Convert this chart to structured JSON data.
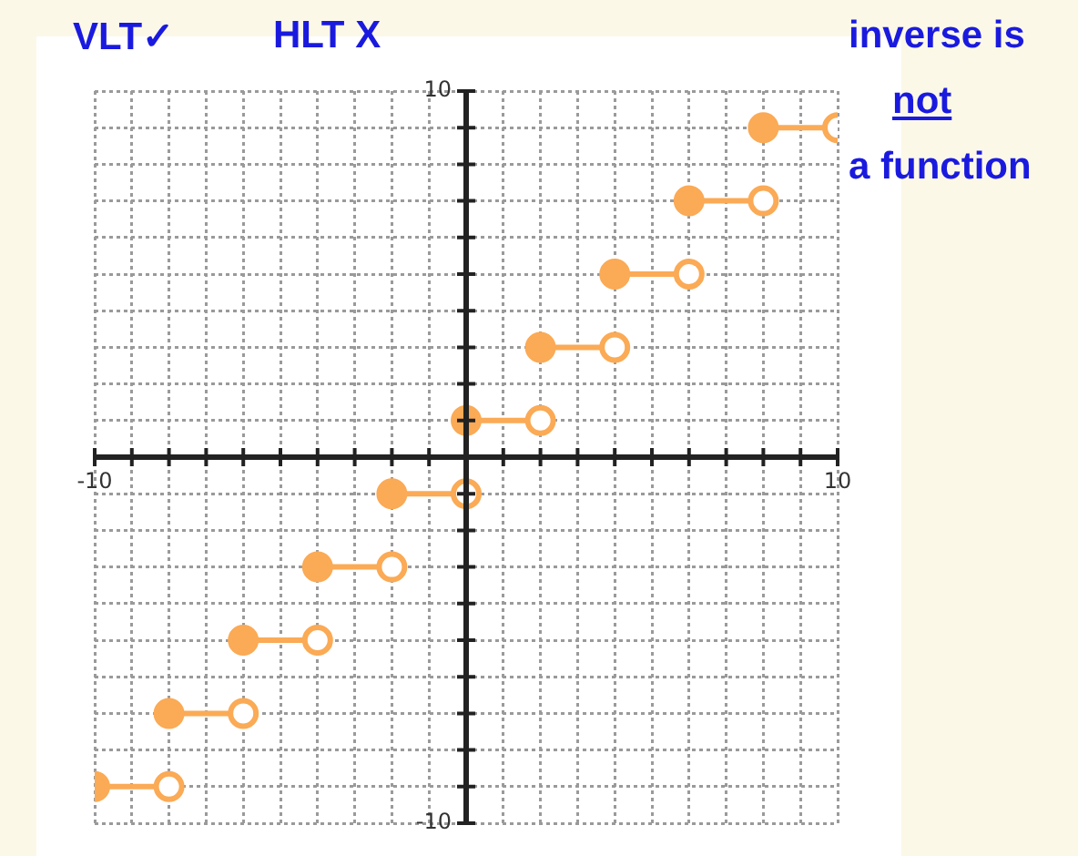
{
  "chart_data": {
    "type": "line",
    "xlim": [
      -10,
      10
    ],
    "ylim": [
      -10,
      10
    ],
    "xticks": [
      {
        "value": -10,
        "label": "-10"
      },
      {
        "value": -9,
        "label": null
      },
      {
        "value": -8,
        "label": null
      },
      {
        "value": -7,
        "label": null
      },
      {
        "value": -6,
        "label": null
      },
      {
        "value": -5,
        "label": null
      },
      {
        "value": -4,
        "label": null
      },
      {
        "value": -3,
        "label": null
      },
      {
        "value": -2,
        "label": null
      },
      {
        "value": -1,
        "label": null
      },
      {
        "value": 0,
        "label": null
      },
      {
        "value": 1,
        "label": null
      },
      {
        "value": 2,
        "label": null
      },
      {
        "value": 3,
        "label": null
      },
      {
        "value": 4,
        "label": null
      },
      {
        "value": 5,
        "label": null
      },
      {
        "value": 6,
        "label": null
      },
      {
        "value": 7,
        "label": null
      },
      {
        "value": 8,
        "label": null
      },
      {
        "value": 9,
        "label": null
      },
      {
        "value": 10,
        "label": "10"
      }
    ],
    "yticks": [
      {
        "value": -10,
        "label": "-10"
      },
      {
        "value": -9,
        "label": null
      },
      {
        "value": -8,
        "label": null
      },
      {
        "value": -7,
        "label": null
      },
      {
        "value": -6,
        "label": null
      },
      {
        "value": -5,
        "label": null
      },
      {
        "value": -4,
        "label": null
      },
      {
        "value": -3,
        "label": null
      },
      {
        "value": -2,
        "label": null
      },
      {
        "value": -1,
        "label": null
      },
      {
        "value": 0,
        "label": null
      },
      {
        "value": 1,
        "label": null
      },
      {
        "value": 2,
        "label": null
      },
      {
        "value": 3,
        "label": null
      },
      {
        "value": 4,
        "label": null
      },
      {
        "value": 5,
        "label": null
      },
      {
        "value": 6,
        "label": null
      },
      {
        "value": 7,
        "label": null
      },
      {
        "value": 8,
        "label": null
      },
      {
        "value": 9,
        "label": null
      },
      {
        "value": 10,
        "label": "10"
      }
    ],
    "grid": true,
    "marker": "circle",
    "line_style": "solid",
    "series": [
      {
        "color": "#fbaa55",
        "x": [
          -10,
          -8
        ],
        "values": [
          -9,
          -9
        ]
      },
      {
        "color": "#fbaa55",
        "x": [
          -8,
          -6
        ],
        "values": [
          -7,
          -7
        ]
      },
      {
        "color": "#fbaa55",
        "x": [
          -6,
          -4
        ],
        "values": [
          -5,
          -5
        ]
      },
      {
        "color": "#fbaa55",
        "x": [
          -4,
          -2
        ],
        "values": [
          -3,
          -3
        ]
      },
      {
        "color": "#fbaa55",
        "x": [
          -2,
          0
        ],
        "values": [
          -1,
          -1
        ]
      },
      {
        "color": "#fbaa55",
        "x": [
          0,
          2
        ],
        "values": [
          1,
          1
        ]
      },
      {
        "color": "#fbaa55",
        "x": [
          2,
          4
        ],
        "values": [
          3,
          3
        ]
      },
      {
        "color": "#fbaa55",
        "x": [
          4,
          6
        ],
        "values": [
          5,
          5
        ]
      },
      {
        "color": "#fbaa55",
        "x": [
          6,
          8
        ],
        "values": [
          7,
          7
        ]
      },
      {
        "color": "#fbaa55",
        "x": [
          8,
          10
        ],
        "values": [
          9,
          9
        ]
      }
    ],
    "annotations": [
      "VLT✓",
      "HLT X",
      "inverse is",
      "not",
      "a function"
    ]
  }
}
